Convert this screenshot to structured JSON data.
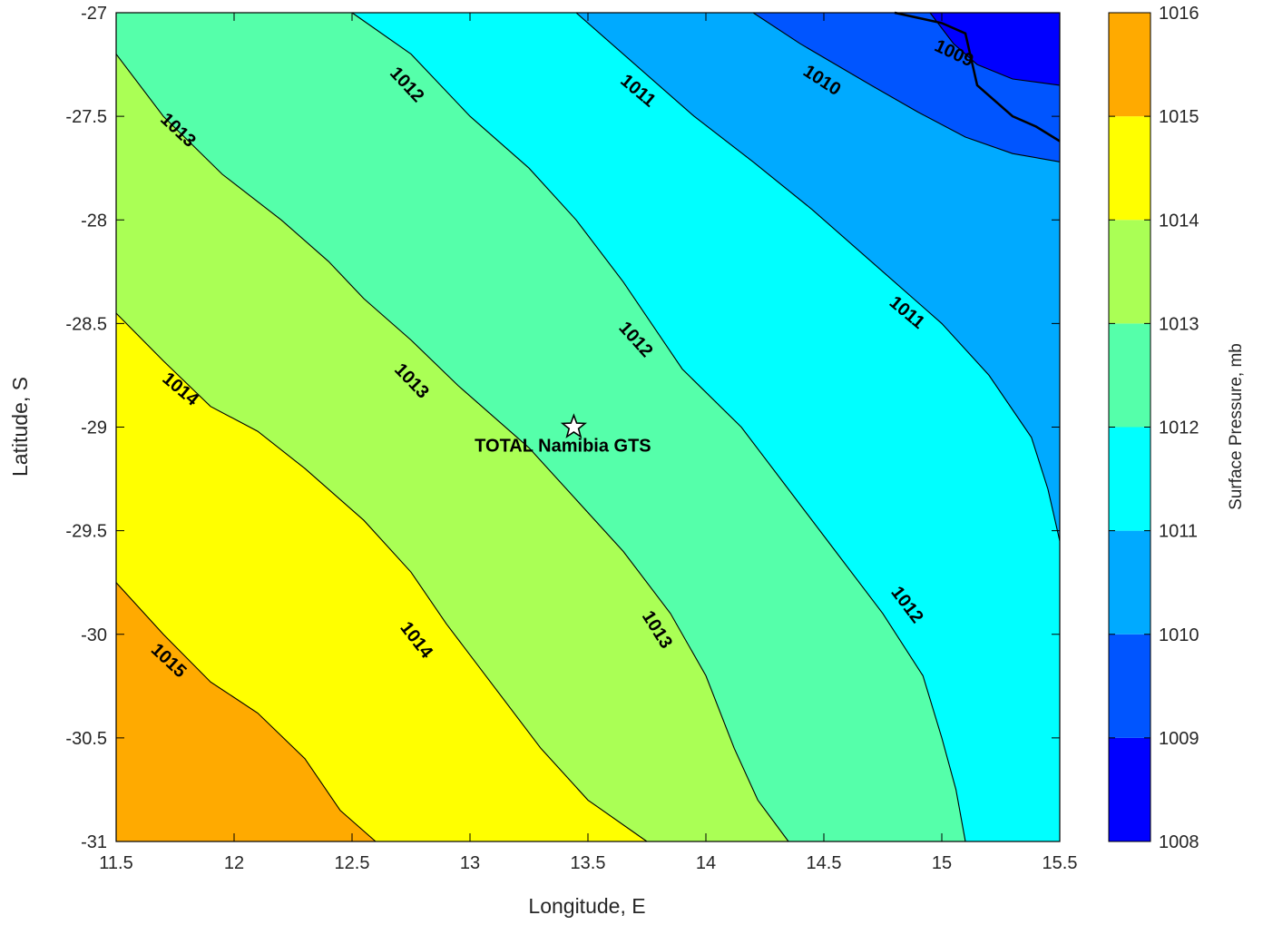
{
  "chart_data": {
    "type": "contourf",
    "xlabel": "Longitude, E",
    "ylabel": "Latitude, S",
    "xlim": [
      11.5,
      15.5
    ],
    "ylim": [
      -31,
      -27
    ],
    "x_ticks": [
      "11.5",
      "12",
      "12.5",
      "13",
      "13.5",
      "14",
      "14.5",
      "15",
      "15.5"
    ],
    "y_ticks": [
      "-27",
      "-27.5",
      "-28",
      "-28.5",
      "-29",
      "-29.5",
      "-30",
      "-30.5",
      "-31"
    ],
    "colorbar": {
      "label": "Surface Pressure, mb",
      "ticks": [
        "1008",
        "1009",
        "1010",
        "1011",
        "1012",
        "1013",
        "1014",
        "1015",
        "1016"
      ],
      "levels": [
        {
          "min": 1008,
          "max": 1009,
          "color": "#0000ff"
        },
        {
          "min": 1009,
          "max": 1010,
          "color": "#0055ff"
        },
        {
          "min": 1010,
          "max": 1011,
          "color": "#00aaff"
        },
        {
          "min": 1011,
          "max": 1012,
          "color": "#00ffff"
        },
        {
          "min": 1012,
          "max": 1013,
          "color": "#55ffaa"
        },
        {
          "min": 1013,
          "max": 1014,
          "color": "#aaff55"
        },
        {
          "min": 1014,
          "max": 1015,
          "color": "#ffff00"
        },
        {
          "min": 1015,
          "max": 1016,
          "color": "#ffaa00"
        }
      ]
    },
    "contours": [
      {
        "level": 1015,
        "points": [
          [
            11.5,
            -29.75
          ],
          [
            11.7,
            -30.0
          ],
          [
            11.9,
            -30.23
          ],
          [
            12.1,
            -30.38
          ],
          [
            12.3,
            -30.6
          ],
          [
            12.45,
            -30.85
          ],
          [
            12.6,
            -31.0
          ]
        ]
      },
      {
        "level": 1014,
        "points": [
          [
            11.5,
            -28.45
          ],
          [
            11.7,
            -28.68
          ],
          [
            11.9,
            -28.9
          ],
          [
            12.1,
            -29.02
          ],
          [
            12.3,
            -29.2
          ],
          [
            12.55,
            -29.45
          ],
          [
            12.75,
            -29.7
          ],
          [
            12.9,
            -29.95
          ],
          [
            13.1,
            -30.25
          ],
          [
            13.3,
            -30.55
          ],
          [
            13.5,
            -30.8
          ],
          [
            13.75,
            -31.0
          ]
        ]
      },
      {
        "level": 1013,
        "points": [
          [
            11.5,
            -27.2
          ],
          [
            11.7,
            -27.5
          ],
          [
            11.95,
            -27.78
          ],
          [
            12.2,
            -28.0
          ],
          [
            12.4,
            -28.2
          ],
          [
            12.55,
            -28.38
          ],
          [
            12.75,
            -28.58
          ],
          [
            12.95,
            -28.8
          ],
          [
            13.25,
            -29.1
          ],
          [
            13.45,
            -29.35
          ],
          [
            13.65,
            -29.6
          ],
          [
            13.85,
            -29.9
          ],
          [
            14.0,
            -30.2
          ],
          [
            14.12,
            -30.55
          ],
          [
            14.22,
            -30.8
          ],
          [
            14.35,
            -31.0
          ]
        ]
      },
      {
        "level": 1012,
        "points": [
          [
            12.5,
            -27.0
          ],
          [
            12.75,
            -27.2
          ],
          [
            13.0,
            -27.5
          ],
          [
            13.25,
            -27.75
          ],
          [
            13.45,
            -28.0
          ],
          [
            13.65,
            -28.3
          ],
          [
            13.9,
            -28.72
          ],
          [
            14.15,
            -29.0
          ],
          [
            14.35,
            -29.3
          ],
          [
            14.55,
            -29.6
          ],
          [
            14.75,
            -29.9
          ],
          [
            14.92,
            -30.2
          ],
          [
            15.0,
            -30.5
          ],
          [
            15.06,
            -30.75
          ],
          [
            15.1,
            -31.0
          ]
        ]
      },
      {
        "level": 1011,
        "points": [
          [
            13.45,
            -27.0
          ],
          [
            13.7,
            -27.25
          ],
          [
            13.95,
            -27.5
          ],
          [
            14.2,
            -27.72
          ],
          [
            14.45,
            -27.95
          ],
          [
            14.75,
            -28.25
          ],
          [
            15.0,
            -28.5
          ],
          [
            15.2,
            -28.75
          ],
          [
            15.38,
            -29.05
          ],
          [
            15.45,
            -29.3
          ],
          [
            15.5,
            -29.55
          ]
        ]
      },
      {
        "level": 1010,
        "points": [
          [
            14.2,
            -27.0
          ],
          [
            14.4,
            -27.15
          ],
          [
            14.7,
            -27.35
          ],
          [
            14.9,
            -27.48
          ],
          [
            15.1,
            -27.6
          ],
          [
            15.3,
            -27.68
          ],
          [
            15.5,
            -27.72
          ]
        ]
      },
      {
        "level": 1009,
        "points": [
          [
            14.95,
            -27.0
          ],
          [
            15.05,
            -27.15
          ],
          [
            15.15,
            -27.25
          ],
          [
            15.3,
            -27.32
          ],
          [
            15.5,
            -27.35
          ]
        ]
      }
    ],
    "contour_labels": [
      {
        "text": "1012",
        "x": 12.73,
        "y": -27.35,
        "angle": 47
      },
      {
        "text": "1013",
        "x": 11.76,
        "y": -27.57,
        "angle": 43
      },
      {
        "text": "1011",
        "x": 13.71,
        "y": -27.38,
        "angle": 40
      },
      {
        "text": "1010",
        "x": 14.49,
        "y": -27.33,
        "angle": 33
      },
      {
        "text": "1009",
        "x": 15.05,
        "y": -27.2,
        "angle": 25
      },
      {
        "text": "1011",
        "x": 14.85,
        "y": -28.45,
        "angle": 40
      },
      {
        "text": "1012",
        "x": 13.7,
        "y": -28.58,
        "angle": 48
      },
      {
        "text": "1014",
        "x": 11.77,
        "y": -28.82,
        "angle": 40
      },
      {
        "text": "1013",
        "x": 12.75,
        "y": -28.78,
        "angle": 46
      },
      {
        "text": "1012",
        "x": 14.85,
        "y": -29.86,
        "angle": 53
      },
      {
        "text": "1014",
        "x": 12.77,
        "y": -30.03,
        "angle": 52
      },
      {
        "text": "1013",
        "x": 13.79,
        "y": -29.98,
        "angle": 58
      },
      {
        "text": "1015",
        "x": 11.72,
        "y": -30.13,
        "angle": 43
      }
    ],
    "coastline": [
      [
        14.8,
        -27.0
      ],
      [
        15.0,
        -27.05
      ],
      [
        15.1,
        -27.1
      ],
      [
        15.12,
        -27.2
      ],
      [
        15.15,
        -27.35
      ],
      [
        15.3,
        -27.5
      ],
      [
        15.4,
        -27.55
      ],
      [
        15.5,
        -27.62
      ]
    ],
    "annotation": {
      "text": "TOTAL Namibia GTS",
      "x": 13.44,
      "y": -29.0
    }
  }
}
